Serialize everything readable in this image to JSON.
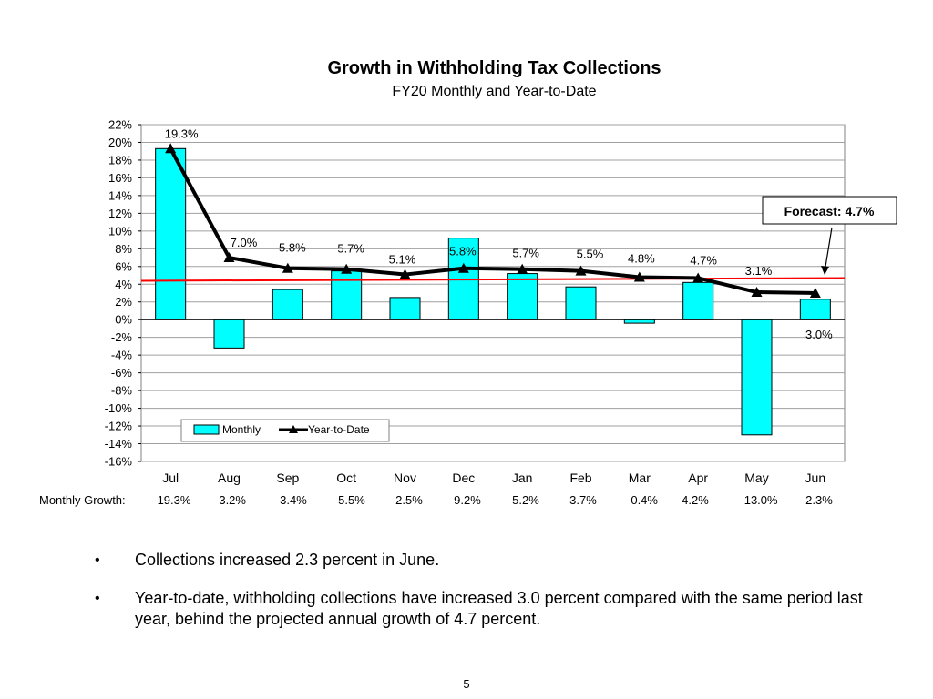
{
  "chart_data": {
    "type": "bar+line",
    "title": "Growth in Withholding Tax Collections",
    "subtitle": "FY20 Monthly and Year-to-Date",
    "categories": [
      "Jul",
      "Aug",
      "Sep",
      "Oct",
      "Nov",
      "Dec",
      "Jan",
      "Feb",
      "Mar",
      "Apr",
      "May",
      "Jun"
    ],
    "series": [
      {
        "name": "Monthly",
        "type": "bar",
        "color": "#00ffff",
        "values": [
          19.3,
          -3.2,
          3.4,
          5.5,
          2.5,
          9.2,
          5.2,
          3.7,
          -0.4,
          4.2,
          -13.0,
          2.3
        ]
      },
      {
        "name": "Year-to-Date",
        "type": "line",
        "color": "#000000",
        "values": [
          19.3,
          7.0,
          5.8,
          5.7,
          5.1,
          5.8,
          5.7,
          5.5,
          4.8,
          4.7,
          3.1,
          3.0
        ],
        "labels": [
          "19.3%",
          "7.0%",
          "5.8%",
          "5.7%",
          "5.1%",
          "5.8%",
          "5.7%",
          "5.5%",
          "4.8%",
          "4.7%",
          "3.1%",
          "3.0%"
        ]
      }
    ],
    "forecast": {
      "value": 4.7,
      "label": "Forecast: 4.7%",
      "color": "#ff0000"
    },
    "ylim": [
      -16,
      22
    ],
    "ytick_step": 2,
    "yticks": [
      "22%",
      "20%",
      "18%",
      "16%",
      "14%",
      "12%",
      "10%",
      "8%",
      "6%",
      "4%",
      "2%",
      "0%",
      "-2%",
      "-4%",
      "-6%",
      "-8%",
      "-10%",
      "-12%",
      "-14%",
      "-16%"
    ],
    "grid": true,
    "legend": {
      "position": "lower-left",
      "entries": [
        "Monthly",
        "Year-to-Date"
      ]
    },
    "monthly_growth_label": "Monthly Growth:",
    "monthly_growth_row": [
      "19.3%",
      "-3.2%",
      "3.4%",
      "5.5%",
      "2.5%",
      "9.2%",
      "5.2%",
      "3.7%",
      "-0.4%",
      "4.2%",
      "-13.0%",
      "2.3%"
    ]
  },
  "bullets": [
    "Collections increased 2.3 percent in June.",
    "Year-to-date, withholding collections have increased 3.0 percent compared with the same period last year, behind the projected annual growth of 4.7 percent."
  ],
  "bullet_symbol": "•",
  "page_number": "5"
}
